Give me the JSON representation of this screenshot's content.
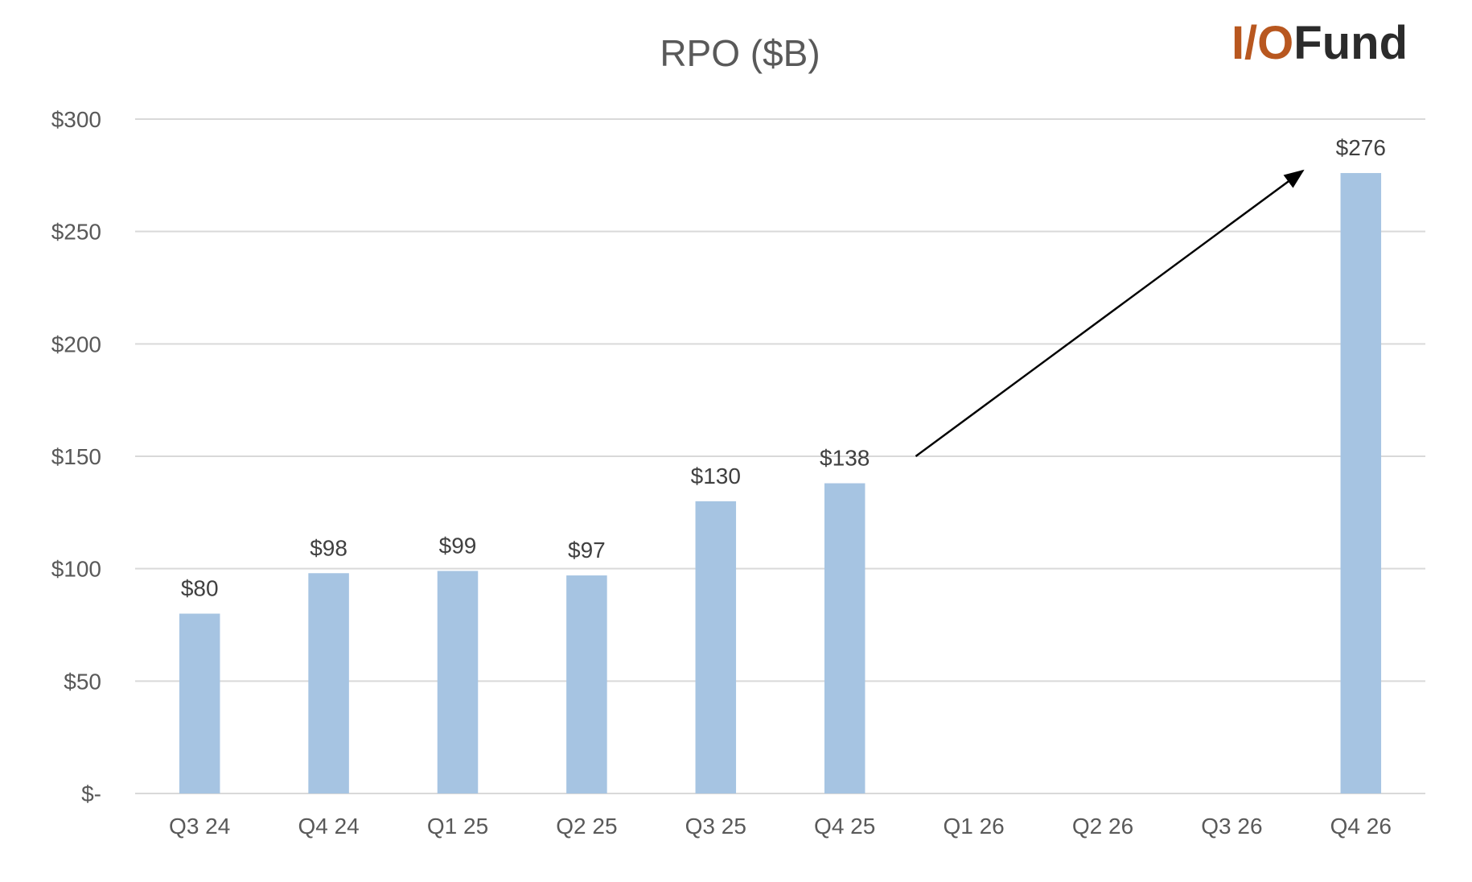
{
  "chart_data": {
    "type": "bar",
    "title": "RPO ($B)",
    "xlabel": "",
    "ylabel": "",
    "categories": [
      "Q3 24",
      "Q4 24",
      "Q1 25",
      "Q2 25",
      "Q3 25",
      "Q4 25",
      "Q1 26",
      "Q2 26",
      "Q3 26",
      "Q4 26"
    ],
    "values": [
      80,
      98,
      99,
      97,
      130,
      138,
      null,
      null,
      null,
      276
    ],
    "data_labels": [
      "$80",
      "$98",
      "$99",
      "$97",
      "$130",
      "$138",
      "",
      "",
      "",
      "$276"
    ],
    "ylim": [
      0,
      300
    ],
    "yticks": [
      0,
      50,
      100,
      150,
      200,
      250,
      300
    ],
    "ytick_labels": [
      "$-",
      "$50",
      "$100",
      "$150",
      "$200",
      "$250",
      "$300"
    ],
    "grid": true,
    "legend": "none",
    "annotations": [
      {
        "type": "arrow",
        "from": {
          "x": "Q4 25",
          "y": 150
        },
        "to": {
          "x": "Q4 26",
          "y": 277
        }
      }
    ],
    "colors": {
      "bar": "#a6c4e2",
      "grid": "#d9d9d9",
      "text": "#595959",
      "arrow": "#000000"
    }
  },
  "logo": {
    "text_prefix": "I/O",
    "text_suffix": "Fund",
    "color_prefix_a": "#8b3a1e",
    "color_prefix_b": "#b8571f",
    "color_suffix": "#2b2b2b"
  }
}
